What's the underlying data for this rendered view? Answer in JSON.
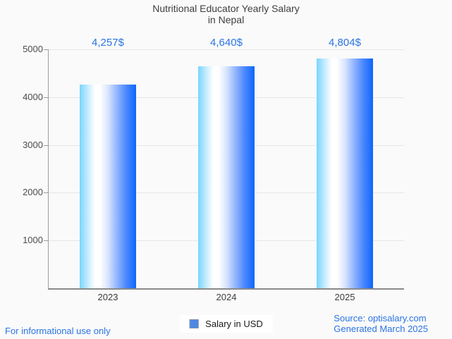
{
  "title": {
    "line1": "Nutritional Educator Yearly Salary",
    "line2": "in Nepal"
  },
  "chart_data": {
    "type": "bar",
    "title": "Nutritional Educator Yearly Salary in Nepal",
    "categories": [
      "2023",
      "2024",
      "2025"
    ],
    "series": [
      {
        "name": "Salary in USD",
        "values": [
          4257,
          4640,
          4804
        ]
      }
    ],
    "value_labels": [
      "4,257$",
      "4,640$",
      "4,804$"
    ],
    "xlabel": "",
    "ylabel": "",
    "ylim": [
      0,
      5000
    ],
    "yticks": [
      5000,
      4000,
      3000,
      2000,
      1000
    ],
    "grid": true,
    "legend_position": "bottom"
  },
  "legend": {
    "label": "Salary in USD",
    "swatch_color": "#4d89e4",
    "swatch_border": "#8291a5"
  },
  "footer": {
    "left": "For informational use only",
    "source": "Source: optisalary.com",
    "generated": "Generated March 2025"
  },
  "colors": {
    "value_label": "#2b74e4",
    "bar_gradient_left": "#79d5fd",
    "bar_gradient_mid": "#ffffff",
    "bar_gradient_right": "#0d66fc",
    "gridline": "#e6e6e6",
    "axis": "#9b9b9b",
    "title_text": "#3f3f3f",
    "footer_link": "#2b74e4",
    "background": "#fafafa"
  }
}
